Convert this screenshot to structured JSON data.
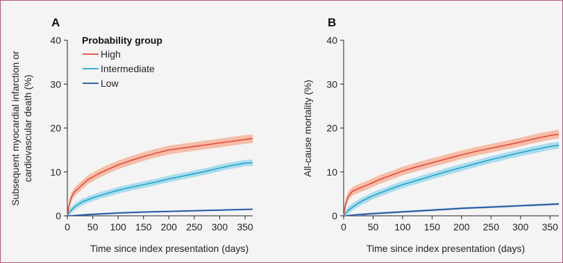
{
  "chart_data": [
    {
      "type": "line",
      "panel_label": "A",
      "xlabel": "Time since index presentation (days)",
      "ylabel": [
        "Subsequent myocardial infarction or",
        "cardiovascular death (%)"
      ],
      "xlim": [
        0,
        365
      ],
      "ylim": [
        0,
        40
      ],
      "xticks": [
        0,
        50,
        100,
        150,
        200,
        250,
        300,
        350
      ],
      "yticks": [
        0,
        10,
        20,
        30,
        40
      ],
      "grid": false,
      "legend": {
        "title": "Probability group",
        "placement": "top-left",
        "entries": [
          "High",
          "Intermediate",
          "Low"
        ]
      },
      "series": [
        {
          "name": "High",
          "color": "#e8473a",
          "band_color": "#f6b49a",
          "x": [
            0,
            3,
            8,
            15,
            25,
            40,
            60,
            80,
            100,
            125,
            150,
            175,
            200,
            225,
            250,
            275,
            300,
            325,
            350,
            365
          ],
          "y": [
            0,
            2.2,
            4.3,
            5.6,
            6.6,
            8.2,
            9.5,
            10.6,
            11.6,
            12.6,
            13.5,
            14.3,
            15.0,
            15.4,
            15.8,
            16.2,
            16.6,
            17.0,
            17.4,
            17.6
          ],
          "band": 1.0
        },
        {
          "name": "Intermediate",
          "color": "#1aa7cc",
          "band_color": "#9fd7ea",
          "x": [
            0,
            5,
            15,
            30,
            50,
            75,
            100,
            125,
            150,
            175,
            200,
            225,
            250,
            275,
            300,
            325,
            350,
            365
          ],
          "y": [
            0,
            1.0,
            2.1,
            3.2,
            4.1,
            5.0,
            5.8,
            6.5,
            7.1,
            7.7,
            8.4,
            9.0,
            9.6,
            10.2,
            10.9,
            11.5,
            12.0,
            12.1
          ],
          "band": 0.75
        },
        {
          "name": "Low",
          "color": "#1b4f9c",
          "band_color": "#8fb3da",
          "x": [
            0,
            25,
            50,
            100,
            150,
            200,
            250,
            300,
            350,
            365
          ],
          "y": [
            0,
            0.15,
            0.35,
            0.65,
            0.85,
            1.0,
            1.15,
            1.3,
            1.45,
            1.5
          ],
          "band": 0.2
        }
      ]
    },
    {
      "type": "line",
      "panel_label": "B",
      "xlabel": "Time since index presentation (days)",
      "ylabel": [
        "All-cause mortality (%)"
      ],
      "xlim": [
        0,
        365
      ],
      "ylim": [
        0,
        40
      ],
      "xticks": [
        0,
        50,
        100,
        150,
        200,
        250,
        300,
        350
      ],
      "yticks": [
        0,
        10,
        20,
        30,
        40
      ],
      "grid": false,
      "series": [
        {
          "name": "High",
          "color": "#e8473a",
          "band_color": "#f6b49a",
          "x": [
            0,
            3,
            8,
            15,
            25,
            40,
            60,
            80,
            100,
            125,
            150,
            175,
            200,
            225,
            250,
            275,
            300,
            325,
            350,
            365
          ],
          "y": [
            0,
            2.5,
            4.5,
            5.6,
            6.2,
            7.0,
            8.2,
            9.2,
            10.2,
            11.2,
            12.1,
            13.0,
            13.9,
            14.7,
            15.4,
            16.1,
            16.8,
            17.6,
            18.3,
            18.6
          ],
          "band": 1.0
        },
        {
          "name": "Intermediate",
          "color": "#1aa7cc",
          "band_color": "#9fd7ea",
          "x": [
            0,
            5,
            15,
            30,
            50,
            75,
            100,
            125,
            150,
            175,
            200,
            225,
            250,
            275,
            300,
            325,
            350,
            365
          ],
          "y": [
            0,
            0.9,
            2.0,
            3.3,
            4.6,
            5.9,
            7.1,
            8.1,
            9.1,
            10.1,
            11.0,
            11.9,
            12.8,
            13.6,
            14.4,
            15.1,
            15.8,
            16.1
          ],
          "band": 0.8
        },
        {
          "name": "Low",
          "color": "#1b4f9c",
          "band_color": "#8fb3da",
          "x": [
            0,
            25,
            50,
            100,
            150,
            200,
            250,
            300,
            350,
            365
          ],
          "y": [
            0,
            0.25,
            0.5,
            0.9,
            1.3,
            1.7,
            2.0,
            2.3,
            2.6,
            2.7
          ],
          "band": 0.25
        }
      ]
    }
  ]
}
